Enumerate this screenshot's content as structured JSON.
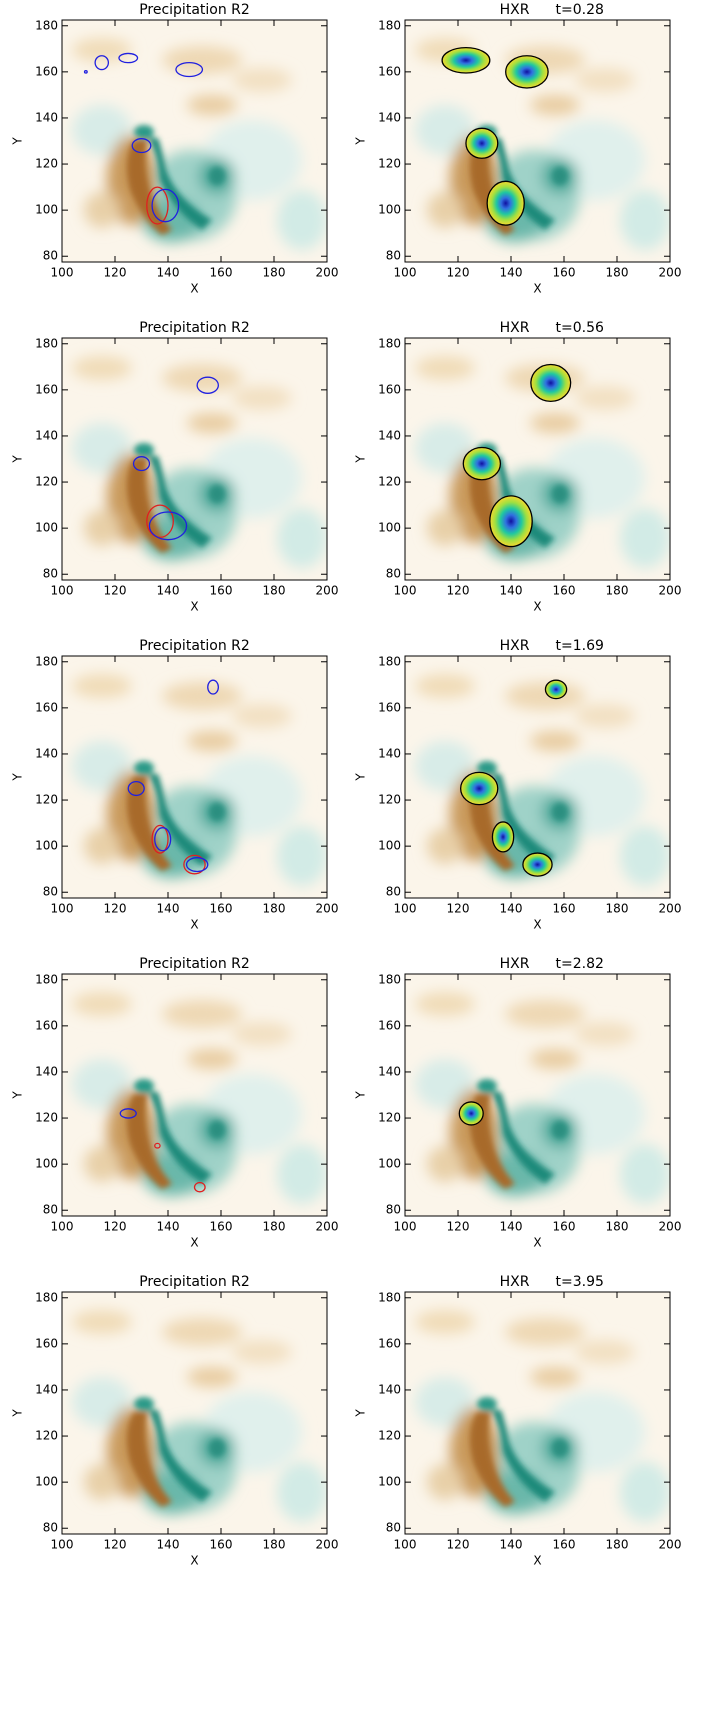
{
  "chart_data": [
    {
      "type": "image",
      "title": "Precipitation R2",
      "xlabel": "X",
      "ylabel": "Y",
      "xlim": [
        100,
        200
      ],
      "ylim": [
        77.5,
        182.5
      ],
      "xticks": [
        100,
        120,
        140,
        160,
        180,
        200
      ],
      "yticks": [
        80,
        100,
        120,
        140,
        160,
        180
      ],
      "contours": [
        {
          "x": 109,
          "y": 160,
          "rx": 0.5,
          "ry": 0.5,
          "color": "#2020e0"
        },
        {
          "x": 115,
          "y": 164,
          "rx": 2.5,
          "ry": 3,
          "color": "#2020e0"
        },
        {
          "x": 125,
          "y": 166,
          "rx": 3.5,
          "ry": 2,
          "color": "#2020e0"
        },
        {
          "x": 148,
          "y": 161,
          "rx": 5,
          "ry": 3,
          "color": "#2020e0"
        },
        {
          "x": 130,
          "y": 128,
          "rx": 3.5,
          "ry": 3,
          "color": "#2020e0"
        },
        {
          "x": 136,
          "y": 102,
          "rx": 4,
          "ry": 8,
          "color": "#e02020"
        },
        {
          "x": 139,
          "y": 102,
          "rx": 5,
          "ry": 7,
          "color": "#2020e0"
        }
      ]
    },
    {
      "type": "image",
      "title": "HXR",
      "annotation": "t=0.28",
      "filled": true,
      "xlabel": "X",
      "ylabel": "Y",
      "xlim": [
        100,
        200
      ],
      "ylim": [
        77.5,
        182.5
      ],
      "xticks": [
        100,
        120,
        140,
        160,
        180,
        200
      ],
      "yticks": [
        80,
        100,
        120,
        140,
        160,
        180
      ],
      "contours": [
        {
          "x": 123,
          "y": 165,
          "rx": 9,
          "ry": 5.5,
          "color": "#000000"
        },
        {
          "x": 146,
          "y": 160,
          "rx": 8,
          "ry": 7,
          "color": "#000000"
        },
        {
          "x": 129,
          "y": 129,
          "rx": 6,
          "ry": 6.5,
          "color": "#000000"
        },
        {
          "x": 138,
          "y": 103,
          "rx": 7,
          "ry": 9.5,
          "color": "#000000"
        }
      ]
    },
    {
      "type": "image",
      "title": "Precipitation R2",
      "xlabel": "X",
      "ylabel": "Y",
      "xlim": [
        100,
        200
      ],
      "ylim": [
        77.5,
        182.5
      ],
      "xticks": [
        100,
        120,
        140,
        160,
        180,
        200
      ],
      "yticks": [
        80,
        100,
        120,
        140,
        160,
        180
      ],
      "contours": [
        {
          "x": 155,
          "y": 162,
          "rx": 4,
          "ry": 3.5,
          "color": "#2020e0"
        },
        {
          "x": 130,
          "y": 128,
          "rx": 3,
          "ry": 3,
          "color": "#2020e0"
        },
        {
          "x": 137,
          "y": 103,
          "rx": 5,
          "ry": 7,
          "color": "#e02020"
        },
        {
          "x": 140,
          "y": 101,
          "rx": 7,
          "ry": 6,
          "color": "#2020e0"
        }
      ]
    },
    {
      "type": "image",
      "title": "HXR",
      "annotation": "t=0.56",
      "filled": true,
      "xlabel": "X",
      "ylabel": "Y",
      "xlim": [
        100,
        200
      ],
      "ylim": [
        77.5,
        182.5
      ],
      "xticks": [
        100,
        120,
        140,
        160,
        180,
        200
      ],
      "yticks": [
        80,
        100,
        120,
        140,
        160,
        180
      ],
      "contours": [
        {
          "x": 155,
          "y": 163,
          "rx": 7.5,
          "ry": 8,
          "color": "#000000"
        },
        {
          "x": 129,
          "y": 128,
          "rx": 7,
          "ry": 7,
          "color": "#000000"
        },
        {
          "x": 140,
          "y": 103,
          "rx": 8,
          "ry": 11,
          "color": "#000000"
        }
      ]
    },
    {
      "type": "image",
      "title": "Precipitation R2",
      "xlabel": "X",
      "ylabel": "Y",
      "xlim": [
        100,
        200
      ],
      "ylim": [
        77.5,
        182.5
      ],
      "xticks": [
        100,
        120,
        140,
        160,
        180,
        200
      ],
      "yticks": [
        80,
        100,
        120,
        140,
        160,
        180
      ],
      "contours": [
        {
          "x": 157,
          "y": 169,
          "rx": 2,
          "ry": 3,
          "color": "#2020e0"
        },
        {
          "x": 128,
          "y": 125,
          "rx": 3,
          "ry": 3,
          "color": "#2020e0"
        },
        {
          "x": 137,
          "y": 103,
          "rx": 3,
          "ry": 6,
          "color": "#e02020"
        },
        {
          "x": 138,
          "y": 103,
          "rx": 3,
          "ry": 5,
          "color": "#2020e0"
        },
        {
          "x": 150,
          "y": 92,
          "rx": 4,
          "ry": 4,
          "color": "#e02020"
        },
        {
          "x": 151,
          "y": 92,
          "rx": 4,
          "ry": 3,
          "color": "#2020e0"
        }
      ]
    },
    {
      "type": "image",
      "title": "HXR",
      "annotation": "t=1.69",
      "filled": true,
      "xlabel": "X",
      "ylabel": "Y",
      "xlim": [
        100,
        200
      ],
      "ylim": [
        77.5,
        182.5
      ],
      "xticks": [
        100,
        120,
        140,
        160,
        180,
        200
      ],
      "yticks": [
        80,
        100,
        120,
        140,
        160,
        180
      ],
      "contours": [
        {
          "x": 157,
          "y": 168,
          "rx": 4,
          "ry": 4,
          "color": "#000000"
        },
        {
          "x": 128,
          "y": 125,
          "rx": 7,
          "ry": 7,
          "color": "#000000"
        },
        {
          "x": 137,
          "y": 104,
          "rx": 4,
          "ry": 6.5,
          "color": "#000000"
        },
        {
          "x": 150,
          "y": 92,
          "rx": 5.5,
          "ry": 5,
          "color": "#000000"
        }
      ]
    },
    {
      "type": "image",
      "title": "Precipitation R2",
      "xlabel": "X",
      "ylabel": "Y",
      "xlim": [
        100,
        200
      ],
      "ylim": [
        77.5,
        182.5
      ],
      "xticks": [
        100,
        120,
        140,
        160,
        180,
        200
      ],
      "yticks": [
        80,
        100,
        120,
        140,
        160,
        180
      ],
      "contours": [
        {
          "x": 125,
          "y": 122,
          "rx": 3,
          "ry": 2,
          "color": "#2020e0"
        },
        {
          "x": 136,
          "y": 108,
          "rx": 1,
          "ry": 1,
          "color": "#e02020"
        },
        {
          "x": 152,
          "y": 90,
          "rx": 2,
          "ry": 2,
          "color": "#e02020"
        }
      ]
    },
    {
      "type": "image",
      "title": "HXR",
      "annotation": "t=2.82",
      "filled": true,
      "xlabel": "X",
      "ylabel": "Y",
      "xlim": [
        100,
        200
      ],
      "ylim": [
        77.5,
        182.5
      ],
      "xticks": [
        100,
        120,
        140,
        160,
        180,
        200
      ],
      "yticks": [
        80,
        100,
        120,
        140,
        160,
        180
      ],
      "contours": [
        {
          "x": 125,
          "y": 122,
          "rx": 4.5,
          "ry": 5,
          "color": "#000000"
        }
      ]
    },
    {
      "type": "image",
      "title": "Precipitation R2",
      "xlabel": "X",
      "ylabel": "Y",
      "xlim": [
        100,
        200
      ],
      "ylim": [
        77.5,
        182.5
      ],
      "xticks": [
        100,
        120,
        140,
        160,
        180,
        200
      ],
      "yticks": [
        80,
        100,
        120,
        140,
        160,
        180
      ],
      "contours": []
    },
    {
      "type": "image",
      "title": "HXR",
      "annotation": "t=3.95",
      "filled": true,
      "xlabel": "X",
      "ylabel": "Y",
      "xlim": [
        100,
        200
      ],
      "ylim": [
        77.5,
        182.5
      ],
      "xticks": [
        100,
        120,
        140,
        160,
        180,
        200
      ],
      "yticks": [
        80,
        100,
        120,
        140,
        160,
        180
      ],
      "contours": []
    }
  ]
}
